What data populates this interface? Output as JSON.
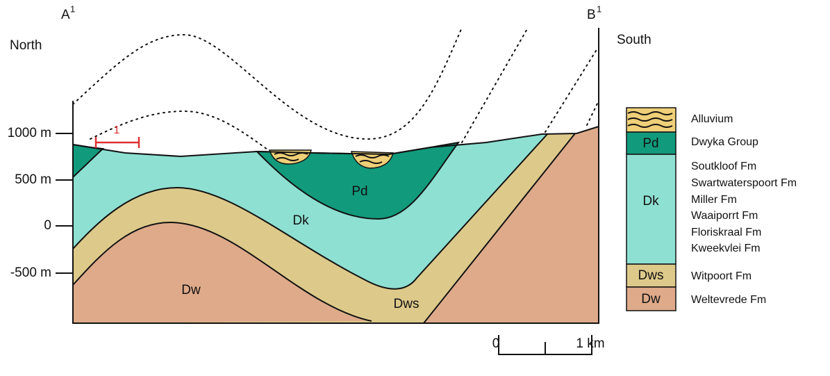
{
  "section": {
    "start": {
      "label": "A",
      "superscript": "1"
    },
    "end": {
      "label": "B",
      "superscript": "1"
    },
    "left_direction": "North",
    "right_direction": "South",
    "depth_labels": [
      "1000 m",
      "500 m",
      "0",
      "-500 m"
    ],
    "marker": "1",
    "unit_labels": [
      "Pd",
      "Dk",
      "Dw",
      "Dws"
    ]
  },
  "legend": [
    {
      "name": "Alluvium"
    },
    {
      "symbol": "Pd",
      "name": "Dwyka Group"
    },
    {
      "symbol": "Dk",
      "formations": [
        "Soutkloof Fm",
        "Swartwaterspoort Fm",
        "Miller Fm",
        "Waaiporrt Fm",
        "Floriskraal Fm",
        "Kweekvlei Fm"
      ]
    },
    {
      "symbol": "Dws",
      "name": "Witpoort Fm"
    },
    {
      "symbol": "Dw",
      "name": "Weltevrede Fm"
    }
  ],
  "scale_bar": {
    "start": "0",
    "end": "1 km"
  }
}
